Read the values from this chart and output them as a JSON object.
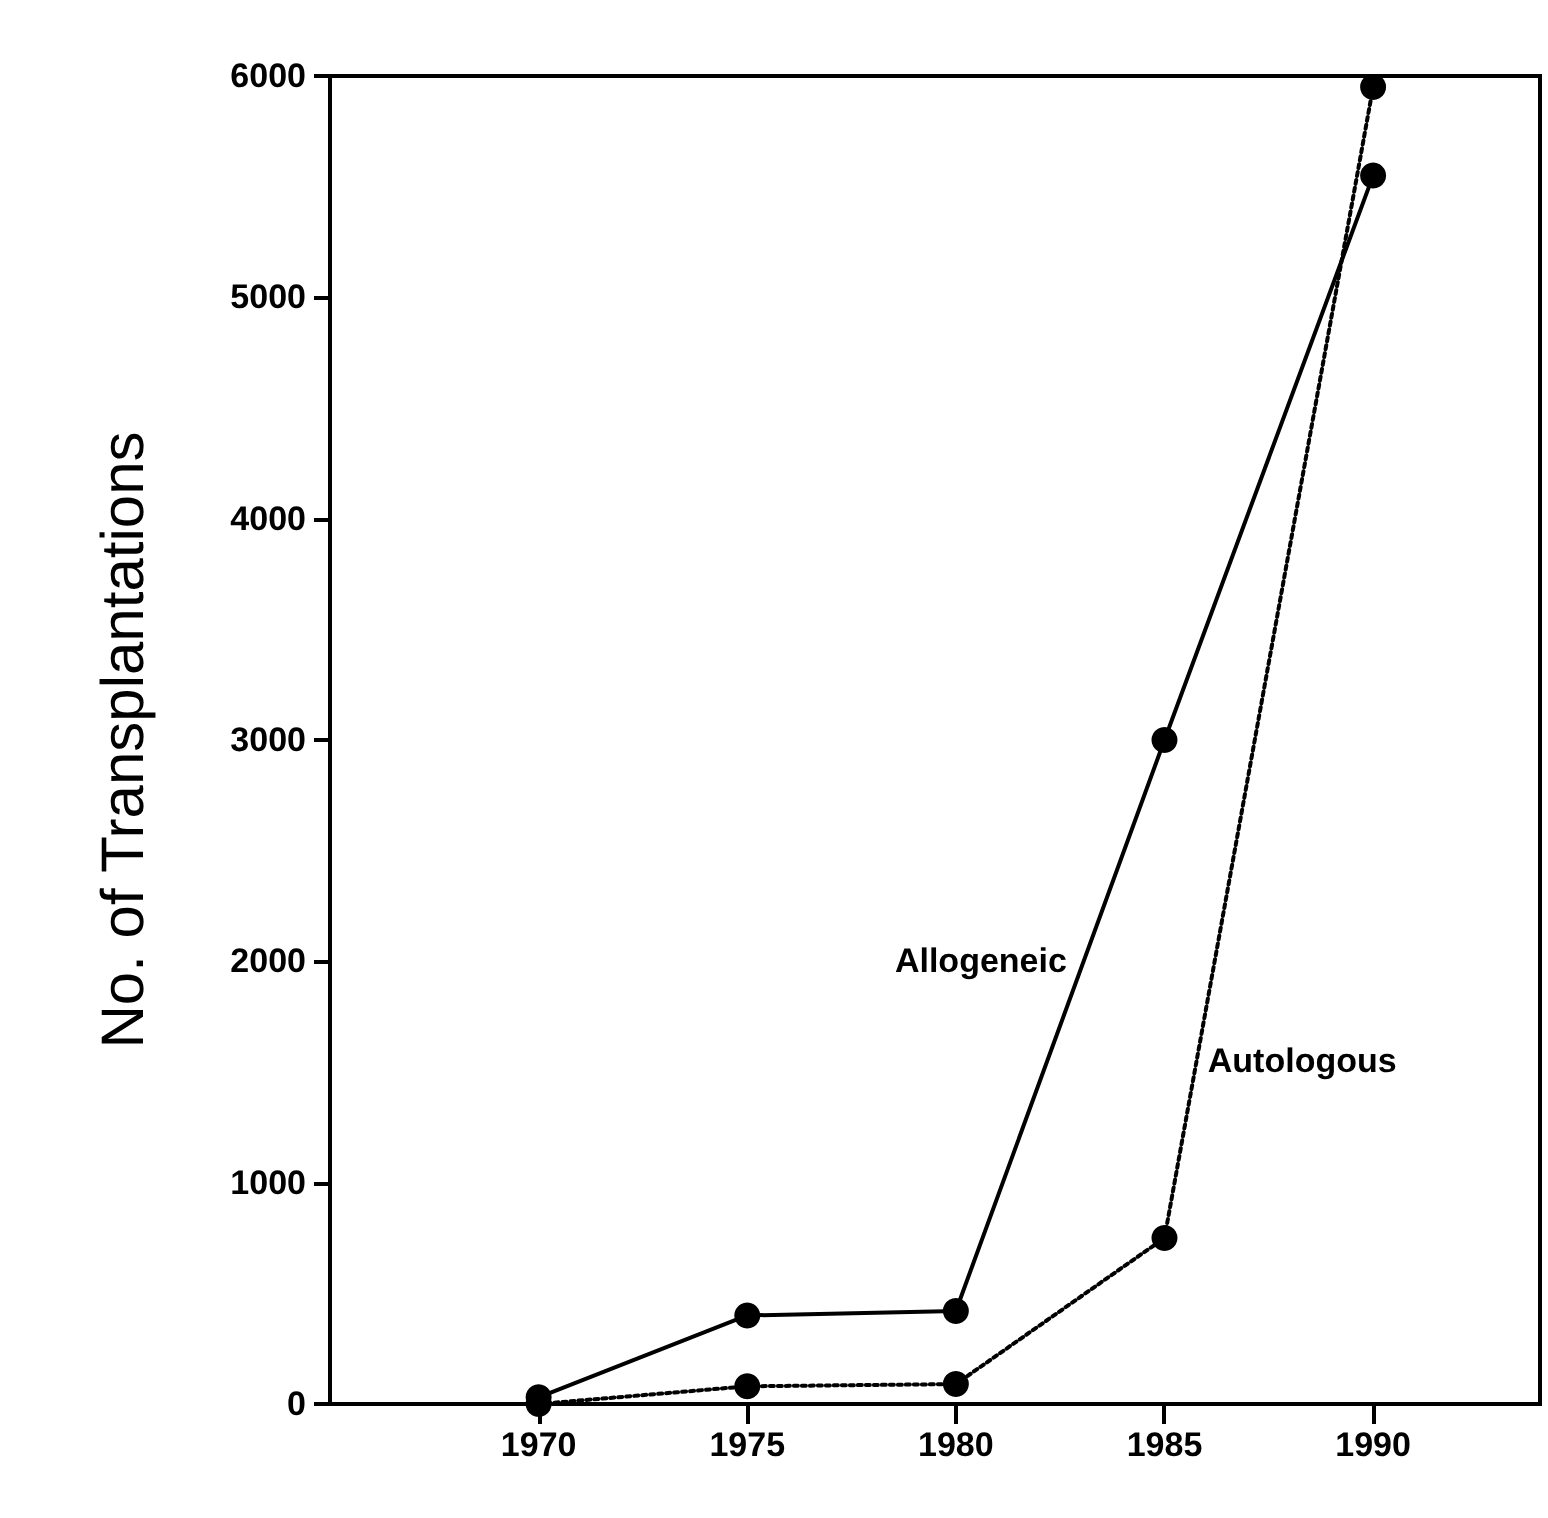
{
  "chart_data": {
    "type": "line",
    "ylabel": "No. of Transplantations",
    "x": [
      1970,
      1975,
      1980,
      1985,
      1990
    ],
    "series": [
      {
        "name": "Allogeneic",
        "color": "#000000",
        "values": [
          30,
          400,
          420,
          3000,
          5550
        ],
        "line_style": "solid"
      },
      {
        "name": "Autologous",
        "color": "#000000",
        "values": [
          0,
          80,
          90,
          750,
          5950
        ],
        "line_style": "dotted"
      }
    ],
    "xlim": [
      1965,
      1994
    ],
    "xticks": [
      1970,
      1975,
      1980,
      1985,
      1990
    ],
    "ylim": [
      0,
      6000
    ],
    "yticks": [
      0,
      1000,
      2000,
      3000,
      4000,
      5000,
      6000
    ],
    "grid": false,
    "legend": false,
    "marker": "circle"
  }
}
